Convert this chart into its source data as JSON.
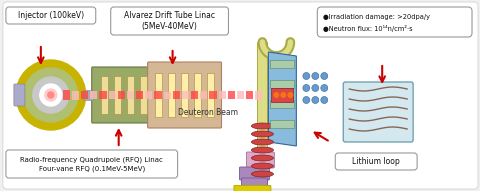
{
  "bg_color": "#f0f0f0",
  "labels": {
    "injector": "Injector (100keV)",
    "alvarez": "Alvarez Drift Tube Linac\n(5MeV-40MeV)",
    "rfq": "Radio-frequency Quadrupole (RFQ) Linac\nFour-vane RFQ (0.1MeV-5MeV)",
    "deuteron": "Deuteron Beam",
    "lithium": "Lithium loop",
    "irr1": "●Irradiation damage: >20dpa/y",
    "irr2": "●Neutron flux: 10¹⁴n/cm²·s"
  },
  "colors": {
    "arrow_red": "#cc0000",
    "beam_red": "#ff4444",
    "beam_pink": "#ffbbbb",
    "injector_yellow": "#c8b400",
    "injector_green": "#88aa44",
    "alvarez_brown": "#b08060",
    "alvarez_tan": "#d4b896",
    "rfq_green": "#99aa66",
    "target_blue": "#88bbdd",
    "target_green": "#aaccaa",
    "lithium_red": "#cc4444",
    "lithium_yellow": "#ddcc00",
    "lithium_pink": "#ddaacc",
    "lithium_purple": "#aa88bb",
    "sample_fill": "#d4e8f0",
    "sample_edge": "#6699aa"
  }
}
